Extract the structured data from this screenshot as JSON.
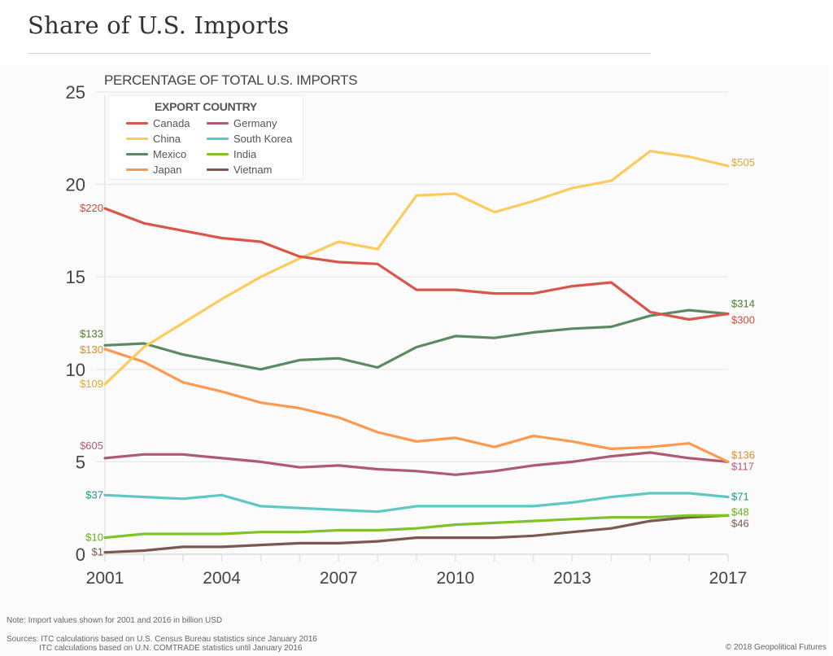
{
  "header": {
    "title": "Share of U.S. Imports"
  },
  "chart_data": {
    "type": "line",
    "title": "PERCENTAGE OF TOTAL U.S. IMPORTS",
    "xlabel": "",
    "ylabel": "",
    "ylim": [
      0,
      25
    ],
    "xlim": [
      2001,
      2017
    ],
    "y_ticks": [
      "0",
      "5",
      "10",
      "15",
      "20",
      "25"
    ],
    "y_tick_values": [
      0,
      5,
      10,
      15,
      20,
      25
    ],
    "x_tick_labels": [
      "2001",
      "2004",
      "2007",
      "2010",
      "2013",
      "2017"
    ],
    "x_tick_values": [
      2001,
      2004,
      2007,
      2010,
      2013,
      2017
    ],
    "x": [
      2001,
      2002,
      2003,
      2004,
      2005,
      2006,
      2007,
      2008,
      2009,
      2010,
      2011,
      2012,
      2013,
      2014,
      2015,
      2016,
      2017
    ],
    "grid": true,
    "legend": {
      "title": "EXPORT COUNTRY",
      "placement": "top-left"
    },
    "series": [
      {
        "name": "Canada",
        "color": "#d9574a",
        "label_color": "#d24a3e",
        "values": [
          18.7,
          17.9,
          17.5,
          17.1,
          16.9,
          16.1,
          15.8,
          15.7,
          14.3,
          14.3,
          14.1,
          14.1,
          14.5,
          14.7,
          13.1,
          12.7,
          13.0
        ],
        "start_label": "$220",
        "end_label": "$300"
      },
      {
        "name": "China",
        "color": "#fccb5d",
        "label_color": "#e0a92a",
        "values": [
          9.2,
          11.2,
          12.5,
          13.8,
          15.0,
          16.0,
          16.9,
          16.5,
          19.4,
          19.5,
          18.5,
          19.1,
          19.8,
          20.2,
          21.8,
          21.5,
          21.0
        ],
        "start_label": "$109",
        "end_label": "$505"
      },
      {
        "name": "Mexico",
        "color": "#5a8a62",
        "label_color": "#4a7a2a",
        "values": [
          11.3,
          11.4,
          10.8,
          10.4,
          10.0,
          10.5,
          10.6,
          10.1,
          11.2,
          11.8,
          11.7,
          12.0,
          12.2,
          12.3,
          12.9,
          13.2,
          13.0
        ],
        "start_label": "$133",
        "end_label": "$314"
      },
      {
        "name": "Japan",
        "color": "#fd9a50",
        "label_color": "#e0892a",
        "values": [
          11.1,
          10.4,
          9.3,
          8.8,
          8.2,
          7.9,
          7.4,
          6.6,
          6.1,
          6.3,
          5.8,
          6.4,
          6.1,
          5.7,
          5.8,
          6.0,
          5.0
        ],
        "start_label": "$130",
        "end_label": "$136"
      },
      {
        "name": "Germany",
        "color": "#ad5a72",
        "label_color": "#b85a78",
        "values": [
          5.2,
          5.4,
          5.4,
          5.2,
          5.0,
          4.7,
          4.8,
          4.6,
          4.5,
          4.3,
          4.5,
          4.8,
          5.0,
          5.3,
          5.5,
          5.2,
          5.0
        ],
        "start_label": "$605",
        "end_label": "$117"
      },
      {
        "name": "South Korea",
        "color": "#5ec8c2",
        "label_color": "#1f9690",
        "values": [
          3.2,
          3.1,
          3.0,
          3.2,
          2.6,
          2.5,
          2.4,
          2.3,
          2.6,
          2.6,
          2.6,
          2.6,
          2.8,
          3.1,
          3.3,
          3.3,
          3.1
        ],
        "start_label": "$37",
        "end_label": "$71"
      },
      {
        "name": "India",
        "color": "#7ec32a",
        "label_color": "#6aaf1e",
        "values": [
          0.9,
          1.1,
          1.1,
          1.1,
          1.2,
          1.2,
          1.3,
          1.3,
          1.4,
          1.6,
          1.7,
          1.8,
          1.9,
          2.0,
          2.0,
          2.1,
          2.1
        ],
        "start_label": "$10",
        "end_label": "$48"
      },
      {
        "name": "Vietnam",
        "color": "#7a5a50",
        "label_color": "#7a5a50",
        "values": [
          0.1,
          0.2,
          0.4,
          0.4,
          0.5,
          0.6,
          0.6,
          0.7,
          0.9,
          0.9,
          0.9,
          1.0,
          1.2,
          1.4,
          1.8,
          2.0,
          2.1
        ],
        "start_label": "$1",
        "end_label": "$46"
      }
    ]
  },
  "footer": {
    "note": "Note: Import values shown for 2001 and 2016 in billion USD",
    "sources_line1": "Sources: ITC calculations based on U.S. Census Bureau statistics since January 2016",
    "sources_line2": "ITC calculations based on U.N. COMTRADE statistics until January 2016",
    "copyright": "© 2018 Geopolitical Futures"
  }
}
